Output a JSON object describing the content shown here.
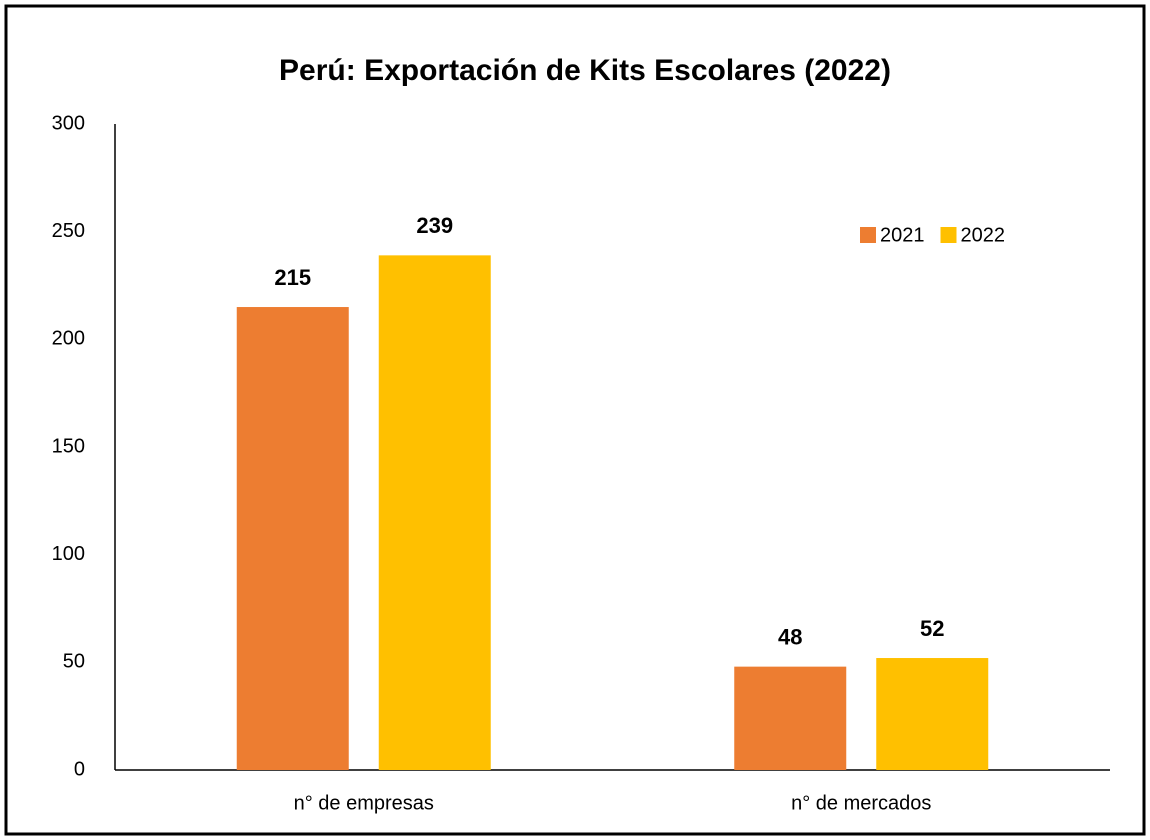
{
  "chart_data": {
    "type": "bar",
    "title": "Perú: Exportación de Kits Escolares (2022)",
    "categories": [
      "n° de empresas",
      "n° de mercados"
    ],
    "series": [
      {
        "name": "2021",
        "color": "#ED7D31",
        "values": [
          215,
          48
        ]
      },
      {
        "name": "2022",
        "color": "#FFC000",
        "values": [
          239,
          52
        ]
      }
    ],
    "ylim": [
      0,
      300
    ],
    "yticks": [
      0,
      50,
      100,
      150,
      200,
      250,
      300
    ],
    "grid": false,
    "legend": "upper right"
  }
}
